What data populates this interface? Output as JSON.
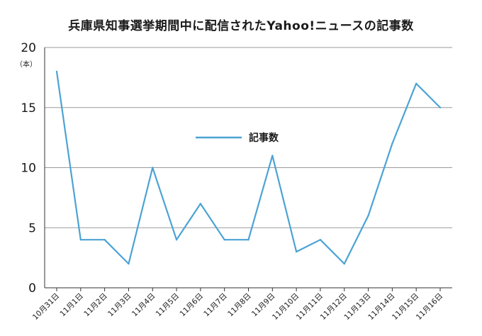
{
  "chart_data": {
    "type": "line",
    "title": "兵庫県知事選挙期間中に配信されたYahoo!ニュースの記事数",
    "ylabel": "（本）",
    "xlabel": "",
    "ylim": [
      0,
      20
    ],
    "yticks": [
      0,
      5,
      10,
      15,
      20
    ],
    "grid": true,
    "legend_position": "center",
    "categories": [
      "10月31日",
      "11月1日",
      "11月2日",
      "11月3日",
      "11月4日",
      "11月5日",
      "11月6日",
      "11月7日",
      "11月8日",
      "11月9日",
      "11月10日",
      "11月11日",
      "11月12日",
      "11月13日",
      "11月14日",
      "11月15日",
      "11月16日"
    ],
    "series": [
      {
        "name": "記事数",
        "color": "#4ba3d4",
        "values": [
          18,
          4,
          4,
          2,
          10,
          4,
          7,
          4,
          4,
          11,
          3,
          4,
          2,
          6,
          12,
          17,
          15
        ]
      }
    ]
  }
}
